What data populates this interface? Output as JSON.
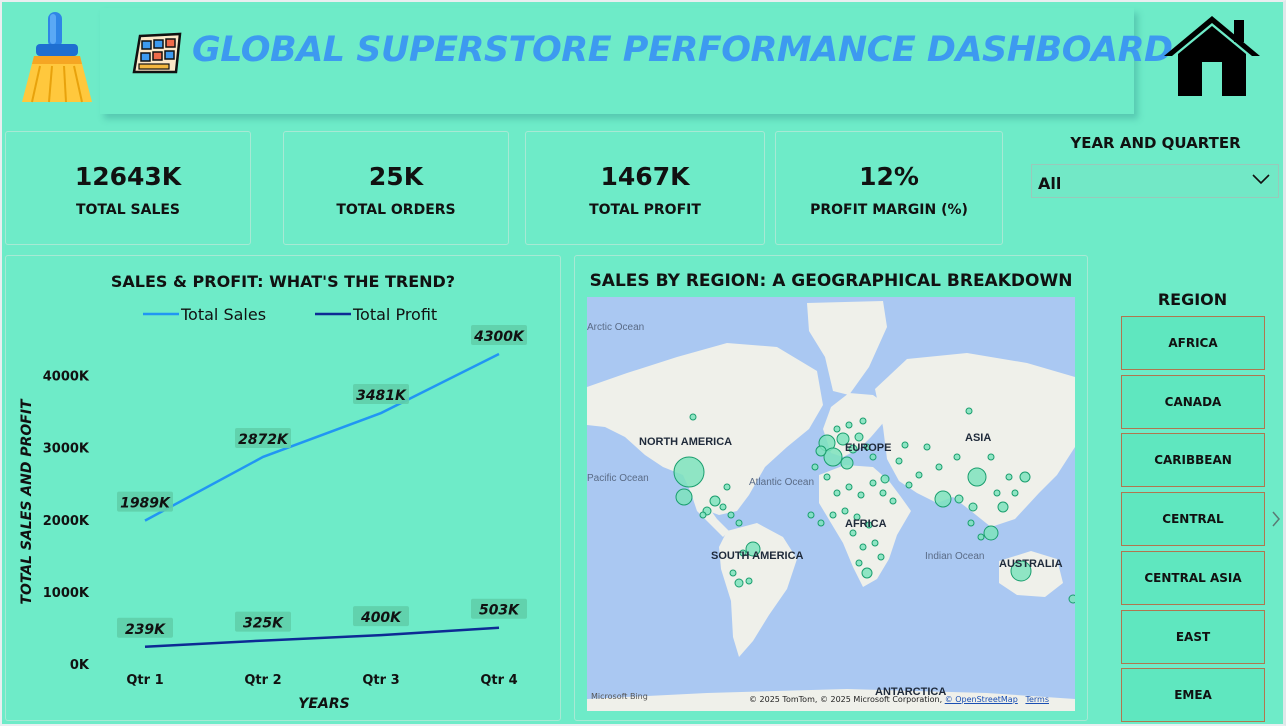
{
  "header": {
    "title": "GLOBAL SUPERSTORE PERFORMANCE DASHBOARD",
    "left_icon": "broom-icon",
    "title_icon": "building-icon",
    "home_icon": "home-icon"
  },
  "kpis": [
    {
      "value": "12643K",
      "label": "TOTAL SALES"
    },
    {
      "value": "25K",
      "label": "TOTAL ORDERS"
    },
    {
      "value": "1467K",
      "label": "TOTAL PROFIT"
    },
    {
      "value": "12%",
      "label": "PROFIT MARGIN (%)"
    }
  ],
  "filter": {
    "label": "YEAR AND QUARTER",
    "value": "All"
  },
  "trend": {
    "title": "SALES & PROFIT: WHAT'S THE TREND?",
    "chart_data": {
      "type": "line",
      "title": "SALES & PROFIT: WHAT'S THE TREND?",
      "xlabel": "YEARS",
      "ylabel": "TOTAL SALES AND PROFIT",
      "categories": [
        "Qtr 1",
        "Qtr 2",
        "Qtr 3",
        "Qtr 4"
      ],
      "y_ticks": [
        "0K",
        "1000K",
        "2000K",
        "3000K",
        "4000K"
      ],
      "ylim": [
        0,
        4300
      ],
      "legend_position": "top-center",
      "series": [
        {
          "name": "Total Sales",
          "color": "#2196f3",
          "values": [
            1989,
            2872,
            3481,
            4300
          ],
          "labels": [
            "1989K",
            "2872K",
            "3481K",
            "4300K"
          ]
        },
        {
          "name": "Total Profit",
          "color": "#0d2a94",
          "values": [
            239,
            325,
            400,
            503
          ],
          "labels": [
            "239K",
            "325K",
            "400K",
            "503K"
          ]
        }
      ]
    }
  },
  "map": {
    "title": "SALES BY REGION: A GEOGRAPHICAL BREAKDOWN",
    "labels": {
      "arctic": "Arctic Ocean",
      "north_america": "NORTH AMERICA",
      "europe": "EUROPE",
      "asia": "ASIA",
      "atlantic": "Atlantic Ocean",
      "africa": "AFRICA",
      "south_america": "SOUTH AMERICA",
      "indian": "Indian Ocean",
      "australia": "AUSTRALIA",
      "antarctica": "ANTARCTICA",
      "pacific": "Pacific Ocean"
    },
    "bing": "Microsoft Bing",
    "attribution": "© 2025 TomTom, © 2025 Microsoft Corporation,",
    "osm": "© OpenStreetMap",
    "terms": "Terms"
  },
  "region": {
    "title": "REGION",
    "items": [
      "AFRICA",
      "CANADA",
      "CARIBBEAN",
      "CENTRAL",
      "CENTRAL ASIA",
      "EAST",
      "EMEA"
    ]
  }
}
